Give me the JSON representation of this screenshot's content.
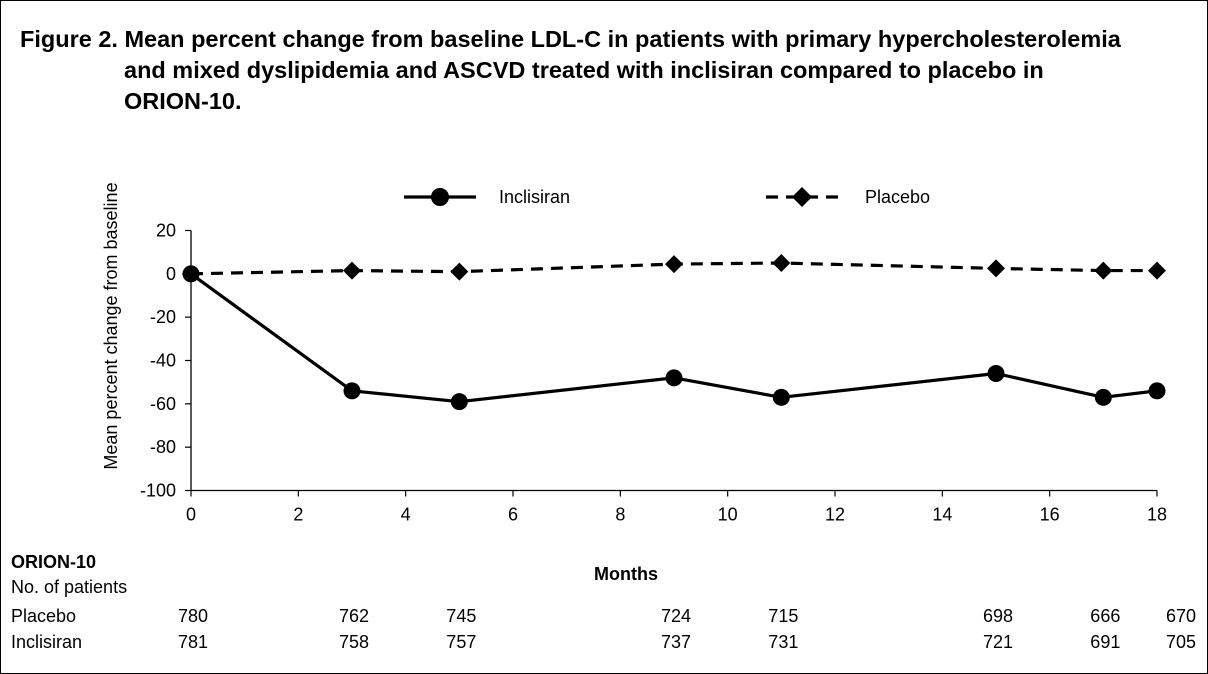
{
  "title_line1": "Figure 2. Mean percent change from baseline LDL-C in patients with primary hypercholesterolemia",
  "title_line2": "and mixed dyslipidemia and ASCVD treated with inclisiran compared to placebo in",
  "title_line3": "ORION-10.",
  "chart_data": {
    "type": "line",
    "title": "Figure 2. Mean percent change from baseline LDL-C in patients with primary hypercholesterolemia and mixed dyslipidemia and ASCVD treated with inclisiran compared to placebo in ORION-10.",
    "xlabel": "Months",
    "ylabel": "Mean percent change from baseline",
    "xlim": [
      0,
      18
    ],
    "ylim": [
      -100,
      20
    ],
    "xticks": [
      0,
      2,
      4,
      6,
      8,
      10,
      12,
      14,
      16,
      18
    ],
    "yticks": [
      20,
      0,
      -20,
      -40,
      -60,
      -80,
      -100
    ],
    "grid": false,
    "legend_position": "top",
    "series": [
      {
        "name": "Inclisiran",
        "line_style": "solid",
        "marker": "circle",
        "color": "#000000",
        "x": [
          0,
          3,
          5,
          9,
          11,
          15,
          17,
          18
        ],
        "y": [
          0,
          -54,
          -59,
          -48,
          -57,
          -46,
          -57,
          -54
        ]
      },
      {
        "name": "Placebo",
        "line_style": "dashed",
        "marker": "diamond",
        "color": "#000000",
        "x": [
          0,
          3,
          5,
          9,
          11,
          15,
          17,
          18
        ],
        "y": [
          0,
          1.5,
          1,
          4.5,
          5,
          2.5,
          1.5,
          1.5
        ]
      }
    ]
  },
  "patients_table": {
    "trial": "ORION-10",
    "subtitle": "No. of patients",
    "rows": [
      {
        "label": "Placebo",
        "counts": [
          "780",
          "762",
          "745",
          "724",
          "715",
          "698",
          "666",
          "670"
        ]
      },
      {
        "label": "Inclisiran",
        "counts": [
          "781",
          "758",
          "757",
          "737",
          "731",
          "721",
          "691",
          "705"
        ]
      }
    ]
  }
}
